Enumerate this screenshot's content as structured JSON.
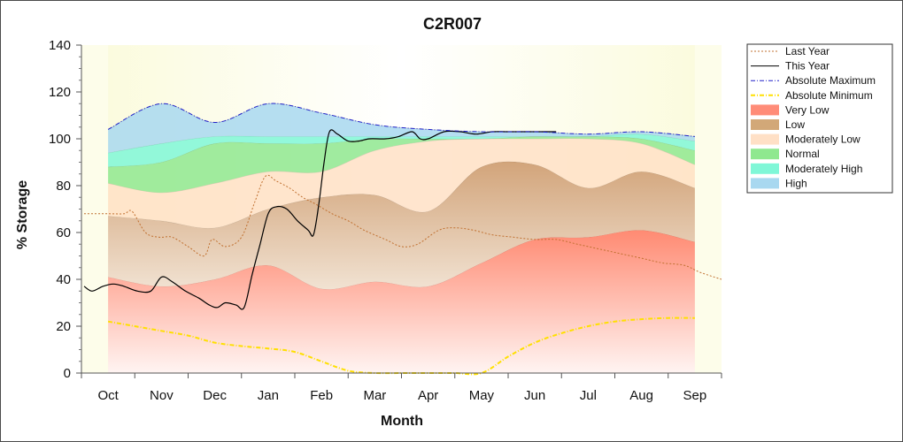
{
  "chart_data": {
    "type": "area",
    "title": "C2R007",
    "xlabel": "Month",
    "ylabel": "% Storage",
    "ylim": [
      0,
      140
    ],
    "yticks": [
      0,
      20,
      40,
      60,
      80,
      100,
      120,
      140
    ],
    "categories": [
      "Oct",
      "Nov",
      "Dec",
      "Jan",
      "Feb",
      "Mar",
      "Apr",
      "May",
      "Jun",
      "Jul",
      "Aug",
      "Sep"
    ],
    "xlim": [
      -0.5,
      11.5
    ],
    "grid": false,
    "legend_position": "right",
    "bands": [
      {
        "name": "Very Low",
        "color": "#ff8c78",
        "x": [
          0,
          1,
          2,
          3,
          4,
          5,
          6,
          7,
          8,
          9,
          10,
          11
        ],
        "lower": [
          0,
          0,
          0,
          0,
          0,
          0,
          0,
          0,
          0,
          0,
          0,
          0
        ],
        "upper": [
          41,
          37,
          40,
          46,
          36,
          39,
          37,
          47,
          57,
          58,
          61,
          56
        ]
      },
      {
        "name": "Low",
        "color": "#d2a878",
        "x": [
          0,
          1,
          2,
          3,
          4,
          5,
          6,
          7,
          8,
          9,
          10,
          11
        ],
        "lower": [
          41,
          37,
          40,
          46,
          36,
          39,
          37,
          47,
          57,
          58,
          61,
          56
        ],
        "upper": [
          67,
          65,
          62,
          70,
          75,
          76,
          69,
          88,
          89,
          79,
          86,
          79
        ]
      },
      {
        "name": "Moderately Low",
        "color": "#ffe0c6",
        "x": [
          0,
          1,
          2,
          3,
          4,
          5,
          6,
          7,
          8,
          9,
          10,
          11
        ],
        "lower": [
          67,
          65,
          62,
          70,
          75,
          76,
          69,
          88,
          89,
          79,
          86,
          79
        ],
        "upper": [
          81,
          77,
          81,
          86,
          86,
          95,
          99,
          100,
          100,
          100,
          98,
          89
        ]
      },
      {
        "name": "Normal",
        "color": "#8fe88f",
        "x": [
          0,
          1,
          2,
          3,
          4,
          5,
          6,
          7,
          8,
          9,
          10,
          11
        ],
        "lower": [
          81,
          77,
          81,
          86,
          86,
          95,
          99,
          100,
          100,
          100,
          98,
          89
        ],
        "upper": [
          88,
          90,
          98,
          98,
          98,
          100,
          100,
          100,
          101,
          101,
          100,
          95
        ]
      },
      {
        "name": "Moderately High",
        "color": "#7ff7d7",
        "x": [
          0,
          1,
          2,
          3,
          4,
          5,
          6,
          7,
          8,
          9,
          10,
          11
        ],
        "lower": [
          88,
          90,
          98,
          98,
          98,
          100,
          100,
          100,
          101,
          101,
          100,
          95
        ],
        "upper": [
          94,
          98,
          101,
          101,
          101,
          101,
          101,
          101,
          101,
          101,
          102,
          99
        ]
      },
      {
        "name": "High",
        "color": "#a8d8f0",
        "x": [
          0,
          1,
          2,
          3,
          4,
          5,
          6,
          7,
          8,
          9,
          10,
          11
        ],
        "lower": [
          94,
          98,
          101,
          101,
          101,
          101,
          101,
          101,
          101,
          101,
          102,
          99
        ],
        "upper": [
          104,
          115,
          107,
          115,
          111,
          106,
          104,
          103,
          103,
          102,
          103,
          101
        ]
      }
    ],
    "series": [
      {
        "name": "Last Year",
        "color": "#c07030",
        "style": "dotted",
        "width": 1,
        "x": [
          -0.45,
          0,
          0.3,
          0.45,
          0.7,
          0.95,
          1.2,
          1.5,
          1.8,
          1.95,
          2.2,
          2.5,
          2.75,
          2.95,
          3.15,
          3.4,
          3.65,
          3.9,
          4.2,
          4.5,
          4.8,
          5.2,
          5.5,
          5.8,
          6.2,
          6.5,
          6.85,
          7.2,
          7.6,
          8.0,
          8.4,
          8.8,
          9.2,
          9.6,
          10.0,
          10.4,
          10.8,
          11.1,
          11.5
        ],
        "y": [
          68,
          68,
          68,
          69,
          60,
          58,
          58,
          54,
          50,
          57,
          54,
          58,
          73,
          84,
          82,
          79,
          75,
          72,
          68,
          65,
          61,
          57,
          54,
          55,
          61,
          62,
          61,
          59,
          58,
          57,
          57,
          55,
          53,
          51,
          49,
          47,
          46,
          43,
          40
        ]
      },
      {
        "name": "This Year",
        "color": "#000000",
        "style": "solid",
        "width": 1.2,
        "x": [
          -0.45,
          -0.3,
          -0.1,
          0.1,
          0.3,
          0.55,
          0.8,
          1.0,
          1.2,
          1.45,
          1.7,
          1.9,
          2.05,
          2.2,
          2.4,
          2.55,
          2.7,
          2.85,
          3.0,
          3.15,
          3.35,
          3.55,
          3.75,
          3.85,
          3.95,
          4.05,
          4.15,
          4.3,
          4.5,
          4.7,
          4.9,
          5.2,
          5.45,
          5.7,
          5.85,
          6.0,
          6.3,
          6.6,
          6.9,
          7.2,
          7.5,
          8.0,
          8.4
        ],
        "y": [
          37,
          35,
          37,
          38,
          37,
          35,
          35,
          41,
          39,
          35,
          32,
          29,
          28,
          30,
          29,
          28,
          42,
          55,
          68,
          71,
          70,
          65,
          61,
          59,
          72,
          90,
          103,
          102,
          99,
          99,
          100,
          100,
          101,
          103,
          100,
          100,
          103,
          103,
          102,
          103,
          103,
          103,
          103
        ]
      },
      {
        "name": "Absolute Maximum",
        "color": "#2020c8",
        "style": "dashdot",
        "width": 1,
        "x": [
          0,
          1,
          2,
          3,
          4,
          5,
          6,
          7,
          8,
          9,
          10,
          11
        ],
        "y": [
          104,
          115,
          107,
          115,
          111,
          106,
          104,
          103,
          103,
          102,
          103,
          101
        ]
      },
      {
        "name": "Absolute Minimum",
        "color": "#ffe000",
        "style": "dashdot",
        "width": 2,
        "x": [
          0,
          0.5,
          1,
          1.5,
          2,
          2.5,
          3,
          3.5,
          4,
          4.5,
          5,
          5.5,
          6,
          6.5,
          7,
          7.5,
          8,
          8.5,
          9,
          9.5,
          10,
          10.5,
          11
        ],
        "y": [
          22,
          20,
          18,
          16,
          13,
          11.5,
          10.5,
          9,
          5,
          1,
          0,
          0,
          0,
          0,
          0,
          7,
          13,
          17,
          20,
          22,
          23,
          23.5,
          23.5
        ]
      }
    ],
    "legend": [
      {
        "label": "Last Year",
        "kind": "line",
        "color": "#c07030",
        "style": "dotted"
      },
      {
        "label": "This Year",
        "kind": "line",
        "color": "#000000",
        "style": "solid"
      },
      {
        "label": "Absolute Maximum",
        "kind": "line",
        "color": "#2020c8",
        "style": "dashdot"
      },
      {
        "label": "Absolute Minimum",
        "kind": "line",
        "color": "#ffe000",
        "style": "dashdot"
      },
      {
        "label": "Very Low",
        "kind": "band",
        "color": "#ff8c78"
      },
      {
        "label": "Low",
        "kind": "band",
        "color": "#d2a878"
      },
      {
        "label": "Moderately Low",
        "kind": "band",
        "color": "#ffe0c6"
      },
      {
        "label": "Normal",
        "kind": "band",
        "color": "#8fe88f"
      },
      {
        "label": "Moderately High",
        "kind": "band",
        "color": "#7ff7d7"
      },
      {
        "label": "High",
        "kind": "band",
        "color": "#a8d8f0"
      }
    ],
    "colors": {
      "plot_background": "#fdfdea"
    }
  }
}
